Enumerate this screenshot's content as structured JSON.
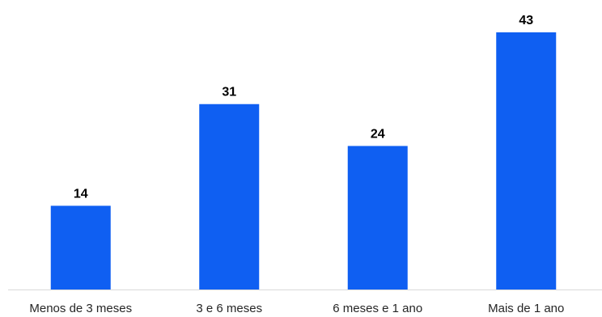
{
  "chart_data": {
    "type": "bar",
    "title": "",
    "xlabel": "",
    "ylabel": "",
    "categories": [
      "Menos de 3 meses",
      "3 e 6 meses",
      "6 meses e 1 ano",
      "Mais de 1 ano"
    ],
    "values": [
      14,
      31,
      24,
      43
    ],
    "ylim": [
      0,
      43
    ],
    "grid": false,
    "legend": "none",
    "bar_color": "#0f5ff2",
    "axis_color": "#d9d9d9",
    "data_labels": true
  }
}
